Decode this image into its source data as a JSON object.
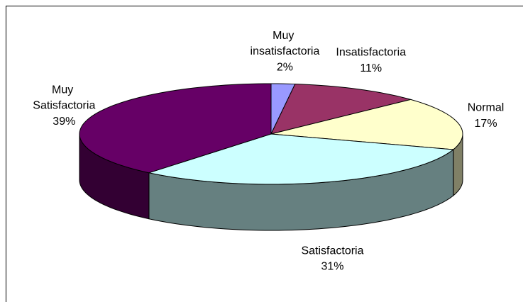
{
  "chart_data": {
    "type": "pie3d",
    "categories": [
      "Muy insatisfactoria",
      "Insatisfactoria",
      "Normal",
      "Satisfactoria",
      "Muy Satisfactoria"
    ],
    "values": [
      2,
      11,
      17,
      31,
      39
    ],
    "value_labels": [
      "2%",
      "11%",
      "17%",
      "31%",
      "39%"
    ],
    "colors": [
      "#9999ff",
      "#993366",
      "#ffffcc",
      "#ccffff",
      "#660066"
    ]
  }
}
